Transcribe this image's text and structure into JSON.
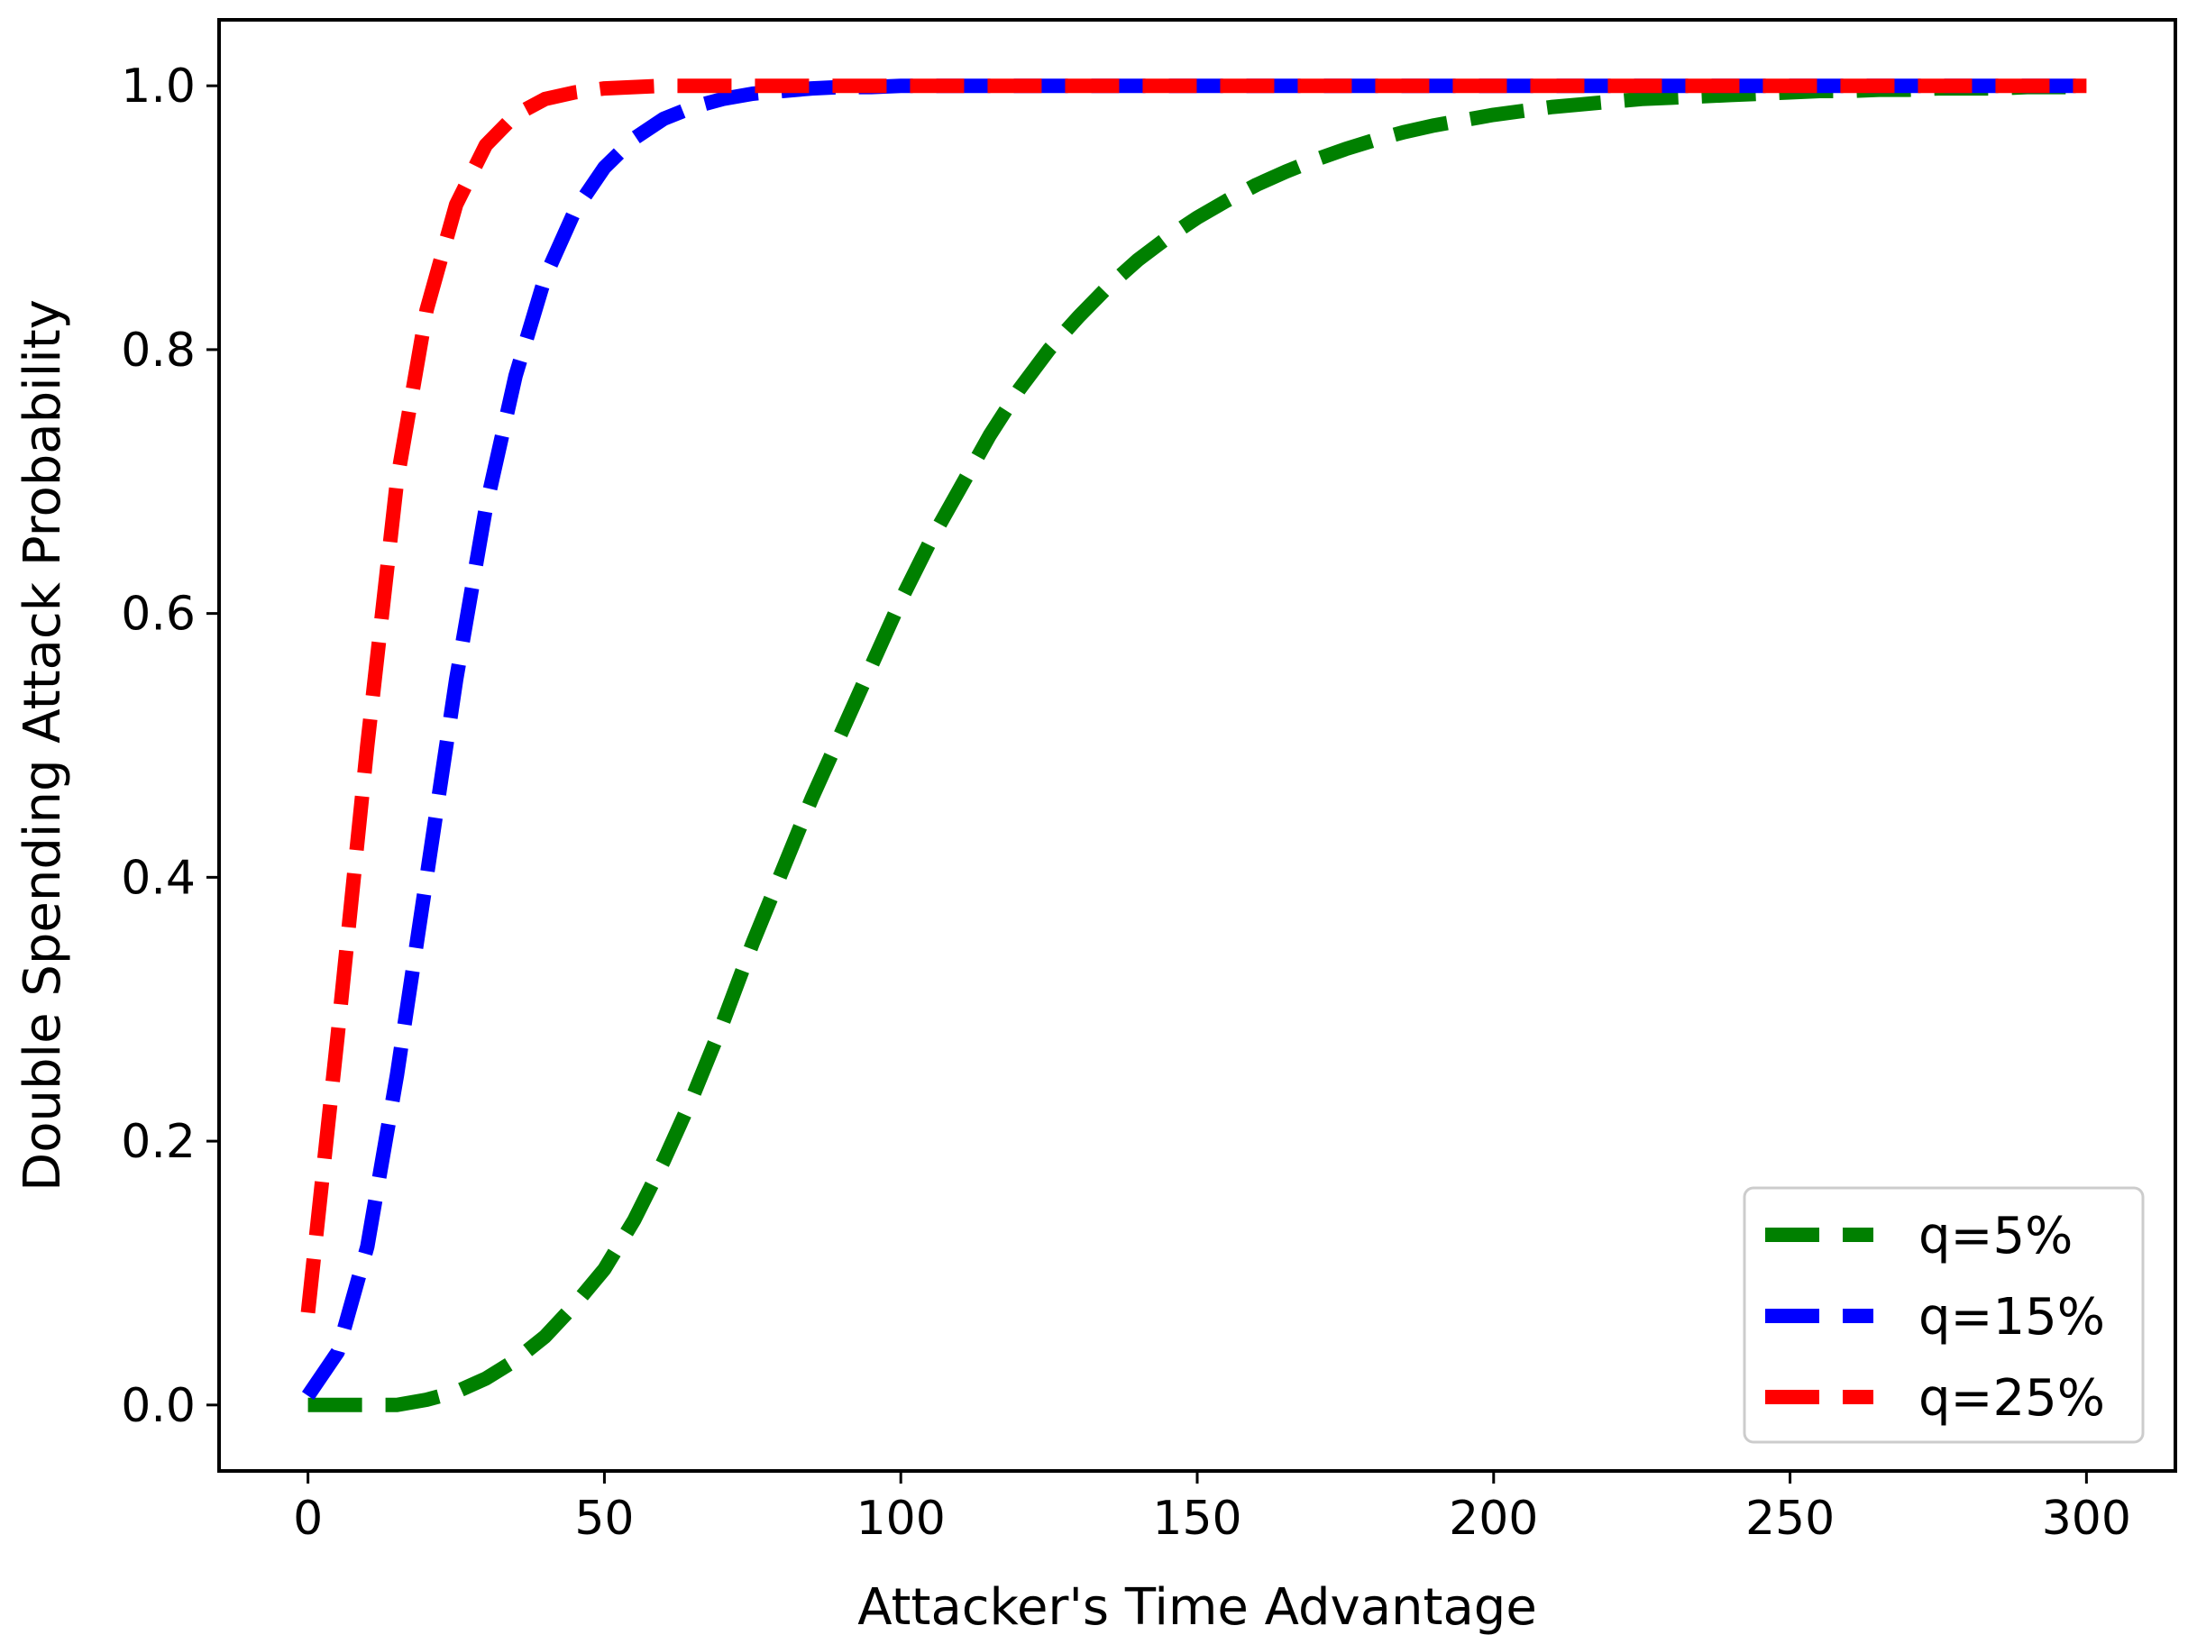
{
  "chart_data": {
    "type": "line",
    "xlabel": "Attacker's Time Advantage",
    "ylabel": "Double Spending Attack Probability",
    "xlim": [
      -15,
      315
    ],
    "ylim": [
      -0.05,
      1.05
    ],
    "xticks": [
      0,
      50,
      100,
      150,
      200,
      250,
      300
    ],
    "yticks": [
      0.0,
      0.2,
      0.4,
      0.6,
      0.8,
      1.0
    ],
    "xtick_labels": [
      "0",
      "50",
      "100",
      "150",
      "200",
      "250",
      "300"
    ],
    "ytick_labels": [
      "0.0",
      "0.2",
      "0.4",
      "0.6",
      "0.8",
      "1.0"
    ],
    "grid": false,
    "legend_position": "bottom-right",
    "line_style": "dashed",
    "x": [
      0,
      5,
      10,
      15,
      20,
      25,
      30,
      35,
      40,
      45,
      50,
      55,
      60,
      65,
      70,
      75,
      80,
      85,
      90,
      95,
      100,
      105,
      110,
      115,
      120,
      125,
      130,
      135,
      140,
      145,
      150,
      155,
      160,
      165,
      170,
      175,
      180,
      185,
      190,
      195,
      200,
      205,
      210,
      215,
      220,
      225,
      230,
      235,
      240,
      245,
      250,
      255,
      260,
      265,
      270,
      275,
      280,
      285,
      290,
      295,
      300
    ],
    "series": [
      {
        "name": "q=5%",
        "color": "#008000",
        "values": [
          0.0,
          0.0,
          0.0,
          0.0,
          0.004,
          0.01,
          0.02,
          0.034,
          0.052,
          0.076,
          0.103,
          0.14,
          0.185,
          0.235,
          0.29,
          0.35,
          0.405,
          0.46,
          0.51,
          0.56,
          0.61,
          0.655,
          0.695,
          0.735,
          0.77,
          0.8,
          0.825,
          0.848,
          0.868,
          0.885,
          0.9,
          0.913,
          0.925,
          0.935,
          0.944,
          0.952,
          0.959,
          0.965,
          0.97,
          0.974,
          0.978,
          0.981,
          0.984,
          0.986,
          0.988,
          0.99,
          0.991,
          0.992,
          0.993,
          0.994,
          0.995,
          0.996,
          0.996,
          0.997,
          0.997,
          0.998,
          0.998,
          0.998,
          0.999,
          0.999,
          0.999
        ]
      },
      {
        "name": "q=15%",
        "color": "#0000ff",
        "values": [
          0.007,
          0.04,
          0.12,
          0.25,
          0.4,
          0.55,
          0.68,
          0.78,
          0.855,
          0.905,
          0.938,
          0.96,
          0.975,
          0.984,
          0.99,
          0.994,
          0.996,
          0.998,
          0.999,
          0.999,
          1.0,
          1.0,
          1.0,
          1.0,
          1.0,
          1.0,
          1.0,
          1.0,
          1.0,
          1.0,
          1.0,
          1.0,
          1.0,
          1.0,
          1.0,
          1.0,
          1.0,
          1.0,
          1.0,
          1.0,
          1.0,
          1.0,
          1.0,
          1.0,
          1.0,
          1.0,
          1.0,
          1.0,
          1.0,
          1.0,
          1.0,
          1.0,
          1.0,
          1.0,
          1.0,
          1.0,
          1.0,
          1.0,
          1.0,
          1.0,
          1.0
        ]
      },
      {
        "name": "q=25%",
        "color": "#ff0000",
        "values": [
          0.07,
          0.28,
          0.5,
          0.7,
          0.83,
          0.91,
          0.955,
          0.978,
          0.99,
          0.995,
          0.998,
          0.999,
          1.0,
          1.0,
          1.0,
          1.0,
          1.0,
          1.0,
          1.0,
          1.0,
          1.0,
          1.0,
          1.0,
          1.0,
          1.0,
          1.0,
          1.0,
          1.0,
          1.0,
          1.0,
          1.0,
          1.0,
          1.0,
          1.0,
          1.0,
          1.0,
          1.0,
          1.0,
          1.0,
          1.0,
          1.0,
          1.0,
          1.0,
          1.0,
          1.0,
          1.0,
          1.0,
          1.0,
          1.0,
          1.0,
          1.0,
          1.0,
          1.0,
          1.0,
          1.0,
          1.0,
          1.0,
          1.0,
          1.0,
          1.0,
          1.0
        ]
      }
    ]
  }
}
